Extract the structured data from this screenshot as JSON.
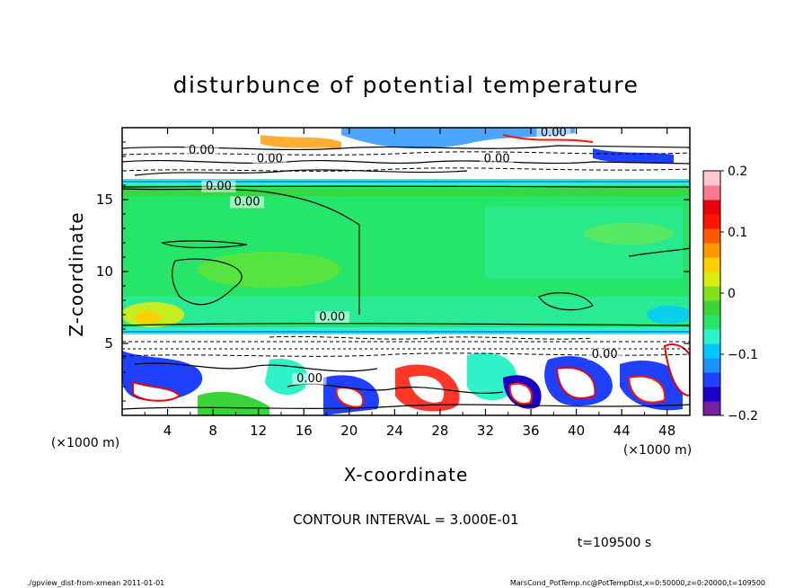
{
  "chart_data": {
    "type": "heatmap",
    "title": "disturbunce of potential temperature",
    "xlabel": "X-coordinate",
    "ylabel": "Z-coordinate",
    "x_unit": "(×1000 m)",
    "y_unit": "(×1000 m)",
    "xlim": [
      0,
      50
    ],
    "ylim": [
      0,
      20
    ],
    "xticks": [
      4,
      8,
      12,
      16,
      20,
      24,
      28,
      32,
      36,
      40,
      44,
      48
    ],
    "yticks": [
      5,
      10,
      15
    ],
    "colorbar": {
      "vmin": -0.2,
      "vmax": 0.2,
      "ticks": [
        0.2,
        0.1,
        0,
        -0.1,
        -0.2
      ],
      "tick_labels": [
        "0.2",
        "0.1",
        "0",
        "−0.1",
        "−0.2"
      ],
      "colors": [
        "#7b1fa2",
        "#1a00c8",
        "#2040ff",
        "#1e90ff",
        "#00c8ff",
        "#2ef2c8",
        "#26e66a",
        "#3ad43a",
        "#7ee21e",
        "#d8ec14",
        "#ffd000",
        "#ff9800",
        "#ff5a00",
        "#ff1400",
        "#e8000c",
        "#ff7890",
        "#ffc8d0"
      ]
    },
    "regions": [
      {
        "name": "upper-disturbed-layer",
        "z_range": [
          16.2,
          20
        ],
        "dominant_color": "#ffffff"
      },
      {
        "name": "main-interior",
        "z_range": [
          6.2,
          16.2
        ],
        "dominant_color": "#26e66a"
      },
      {
        "name": "lower-turbulent-layer",
        "z_range": [
          0,
          6.2
        ],
        "dominant_color": "#ffffff"
      }
    ],
    "contour_labels": [
      {
        "text": "0.00",
        "x": 38,
        "z": 19.4
      },
      {
        "text": "0.00",
        "x": 7,
        "z": 18.2
      },
      {
        "text": "0.00",
        "x": 13,
        "z": 17.6
      },
      {
        "text": "0.00",
        "x": 33,
        "z": 17.6
      },
      {
        "text": "0.00",
        "x": 8.5,
        "z": 15.7
      },
      {
        "text": "0.00",
        "x": 11,
        "z": 14.6
      },
      {
        "text": "0.00",
        "x": 18.5,
        "z": 6.6
      },
      {
        "text": "0.00",
        "x": 42.5,
        "z": 4.0
      },
      {
        "text": "0.00",
        "x": 16.5,
        "z": 2.3
      }
    ]
  },
  "annotations": {
    "contour_interval": "CONTOUR INTERVAL = 3.000E-01",
    "time": "t=109500 s",
    "footer_left": "./gpview_dist-from-xmean   2011-01-01",
    "footer_right": "MarsCond_PotTemp.nc@PotTempDist,x=0:50000,z=0:20000,t=109500"
  }
}
